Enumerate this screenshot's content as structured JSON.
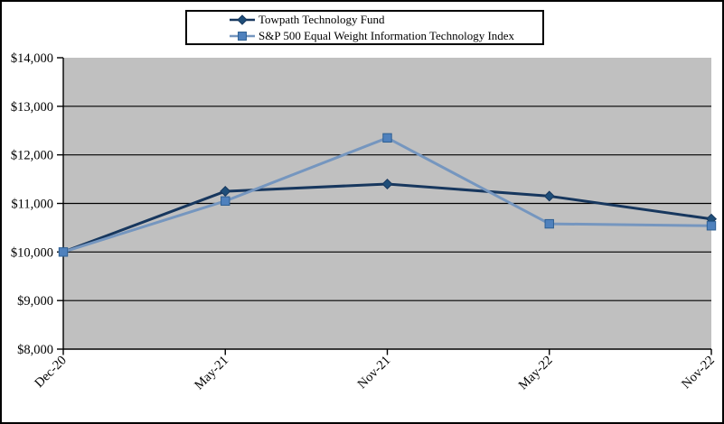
{
  "legend": {
    "entries": [
      {
        "label": "Towpath Technology Fund"
      },
      {
        "label": "S&P 500 Equal Weight Information Technology Index"
      }
    ]
  },
  "chart_data": {
    "type": "line",
    "title": "",
    "xlabel": "",
    "ylabel": "",
    "categories": [
      "Dec-20",
      "May-21",
      "Nov-21",
      "May-22",
      "Nov-22"
    ],
    "series": [
      {
        "name": "Towpath Technology Fund",
        "values": [
          10000,
          11250,
          11400,
          11150,
          10680
        ],
        "line_color": "#17375E",
        "marker": "diamond",
        "marker_fill": "#1F4E79",
        "marker_stroke": "#17375E"
      },
      {
        "name": "S&P 500 Equal Weight Information Technology Index",
        "values": [
          10000,
          11050,
          12350,
          10580,
          10540
        ],
        "line_color": "#7596BF",
        "marker": "square",
        "marker_fill": "#4F81BD",
        "marker_stroke": "#2E6093"
      }
    ],
    "ylim": [
      8000,
      14000
    ],
    "ytick_step": 1000,
    "ytick_labels": [
      "$8,000",
      "$9,000",
      "$10,000",
      "$11,000",
      "$12,000",
      "$13,000",
      "$14,000"
    ],
    "grid": "horizontal",
    "gridline_color": "#000000",
    "plot_bg": "#C0C0C0",
    "axis_color": "#000000",
    "legend_position": "top-center"
  }
}
